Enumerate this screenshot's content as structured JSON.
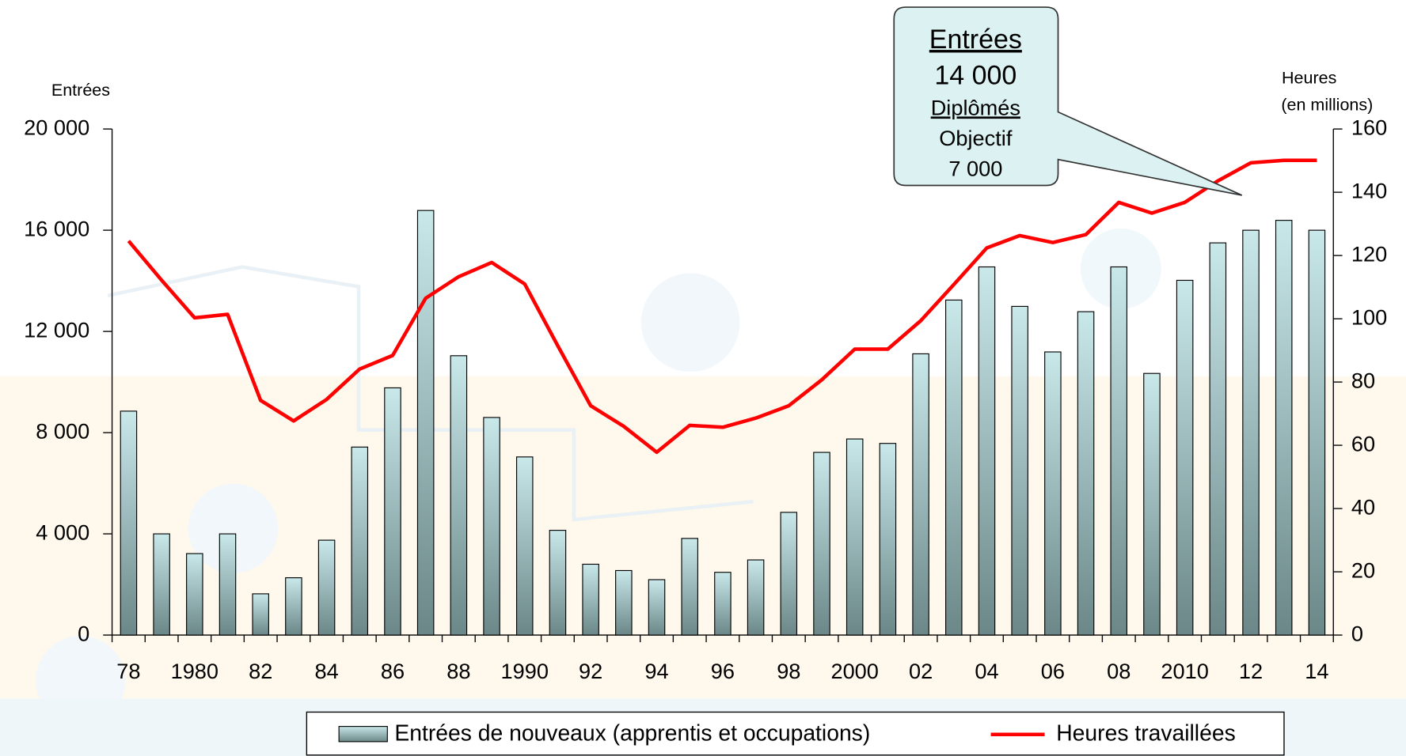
{
  "chart_data": {
    "type": "bar_line",
    "y_label": "Entrées",
    "y2_label": [
      "Heures",
      "(en millions)"
    ],
    "categories": [
      "78",
      null,
      "1980",
      null,
      "82",
      null,
      "84",
      null,
      "86",
      null,
      "88",
      null,
      "1990",
      null,
      "92",
      null,
      "94",
      null,
      "96",
      null,
      "98",
      null,
      "2000",
      null,
      "02",
      null,
      "04",
      null,
      "06",
      null,
      "08",
      null,
      "2010",
      null,
      "12",
      null,
      "14"
    ],
    "series": [
      {
        "name": "Entrées de nouveaux (apprentis et occupations)",
        "type": "bar",
        "color": "#c9e8ea",
        "values": [
          8850,
          4000,
          3220,
          4000,
          1630,
          2265,
          3750,
          7430,
          9770,
          16780,
          11040,
          8600,
          7040,
          4140,
          2800,
          2550,
          2190,
          3820,
          2480,
          2970,
          4850,
          7220,
          7750,
          7575,
          11115,
          13240,
          14550,
          12990,
          11190,
          12780,
          14550,
          10340,
          14020,
          15500,
          16000,
          16390,
          16000
        ]
      },
      {
        "name": "Heures travaillées",
        "type": "line",
        "axis": "y2",
        "color": "#ff0000",
        "values": [
          124.6,
          112.2,
          100.3,
          101.4,
          74.2,
          67.7,
          74.5,
          84.1,
          88.4,
          106.5,
          113.3,
          117.8,
          111.0,
          91.5,
          72.5,
          66.0,
          57.8,
          66.3,
          65.7,
          68.6,
          72.5,
          80.7,
          90.4,
          90.4,
          99.4,
          110.8,
          122.4,
          126.3,
          124.1,
          126.6,
          136.8,
          133.4,
          136.8,
          143.6,
          149.3,
          150.1,
          150.1
        ]
      }
    ],
    "ylim": [
      0,
      20000
    ],
    "yticks": [
      0,
      {
        "value": 4000,
        "label": "4 000"
      },
      {
        "value": 8000,
        "label": "8 000"
      },
      {
        "value": 12000,
        "label": "12 000"
      },
      {
        "value": 16000,
        "label": "16 000"
      },
      {
        "value": 20000,
        "label": "20 000"
      }
    ],
    "y2lim": [
      0,
      160
    ],
    "y2ticks": [
      0,
      20,
      40,
      60,
      80,
      100,
      120,
      140,
      160
    ],
    "legend": "bottom",
    "annotation": {
      "title": "Entrées",
      "value": "14 000",
      "subtitle": "Diplômés",
      "text": "Objectif",
      "target": "7 000"
    }
  }
}
